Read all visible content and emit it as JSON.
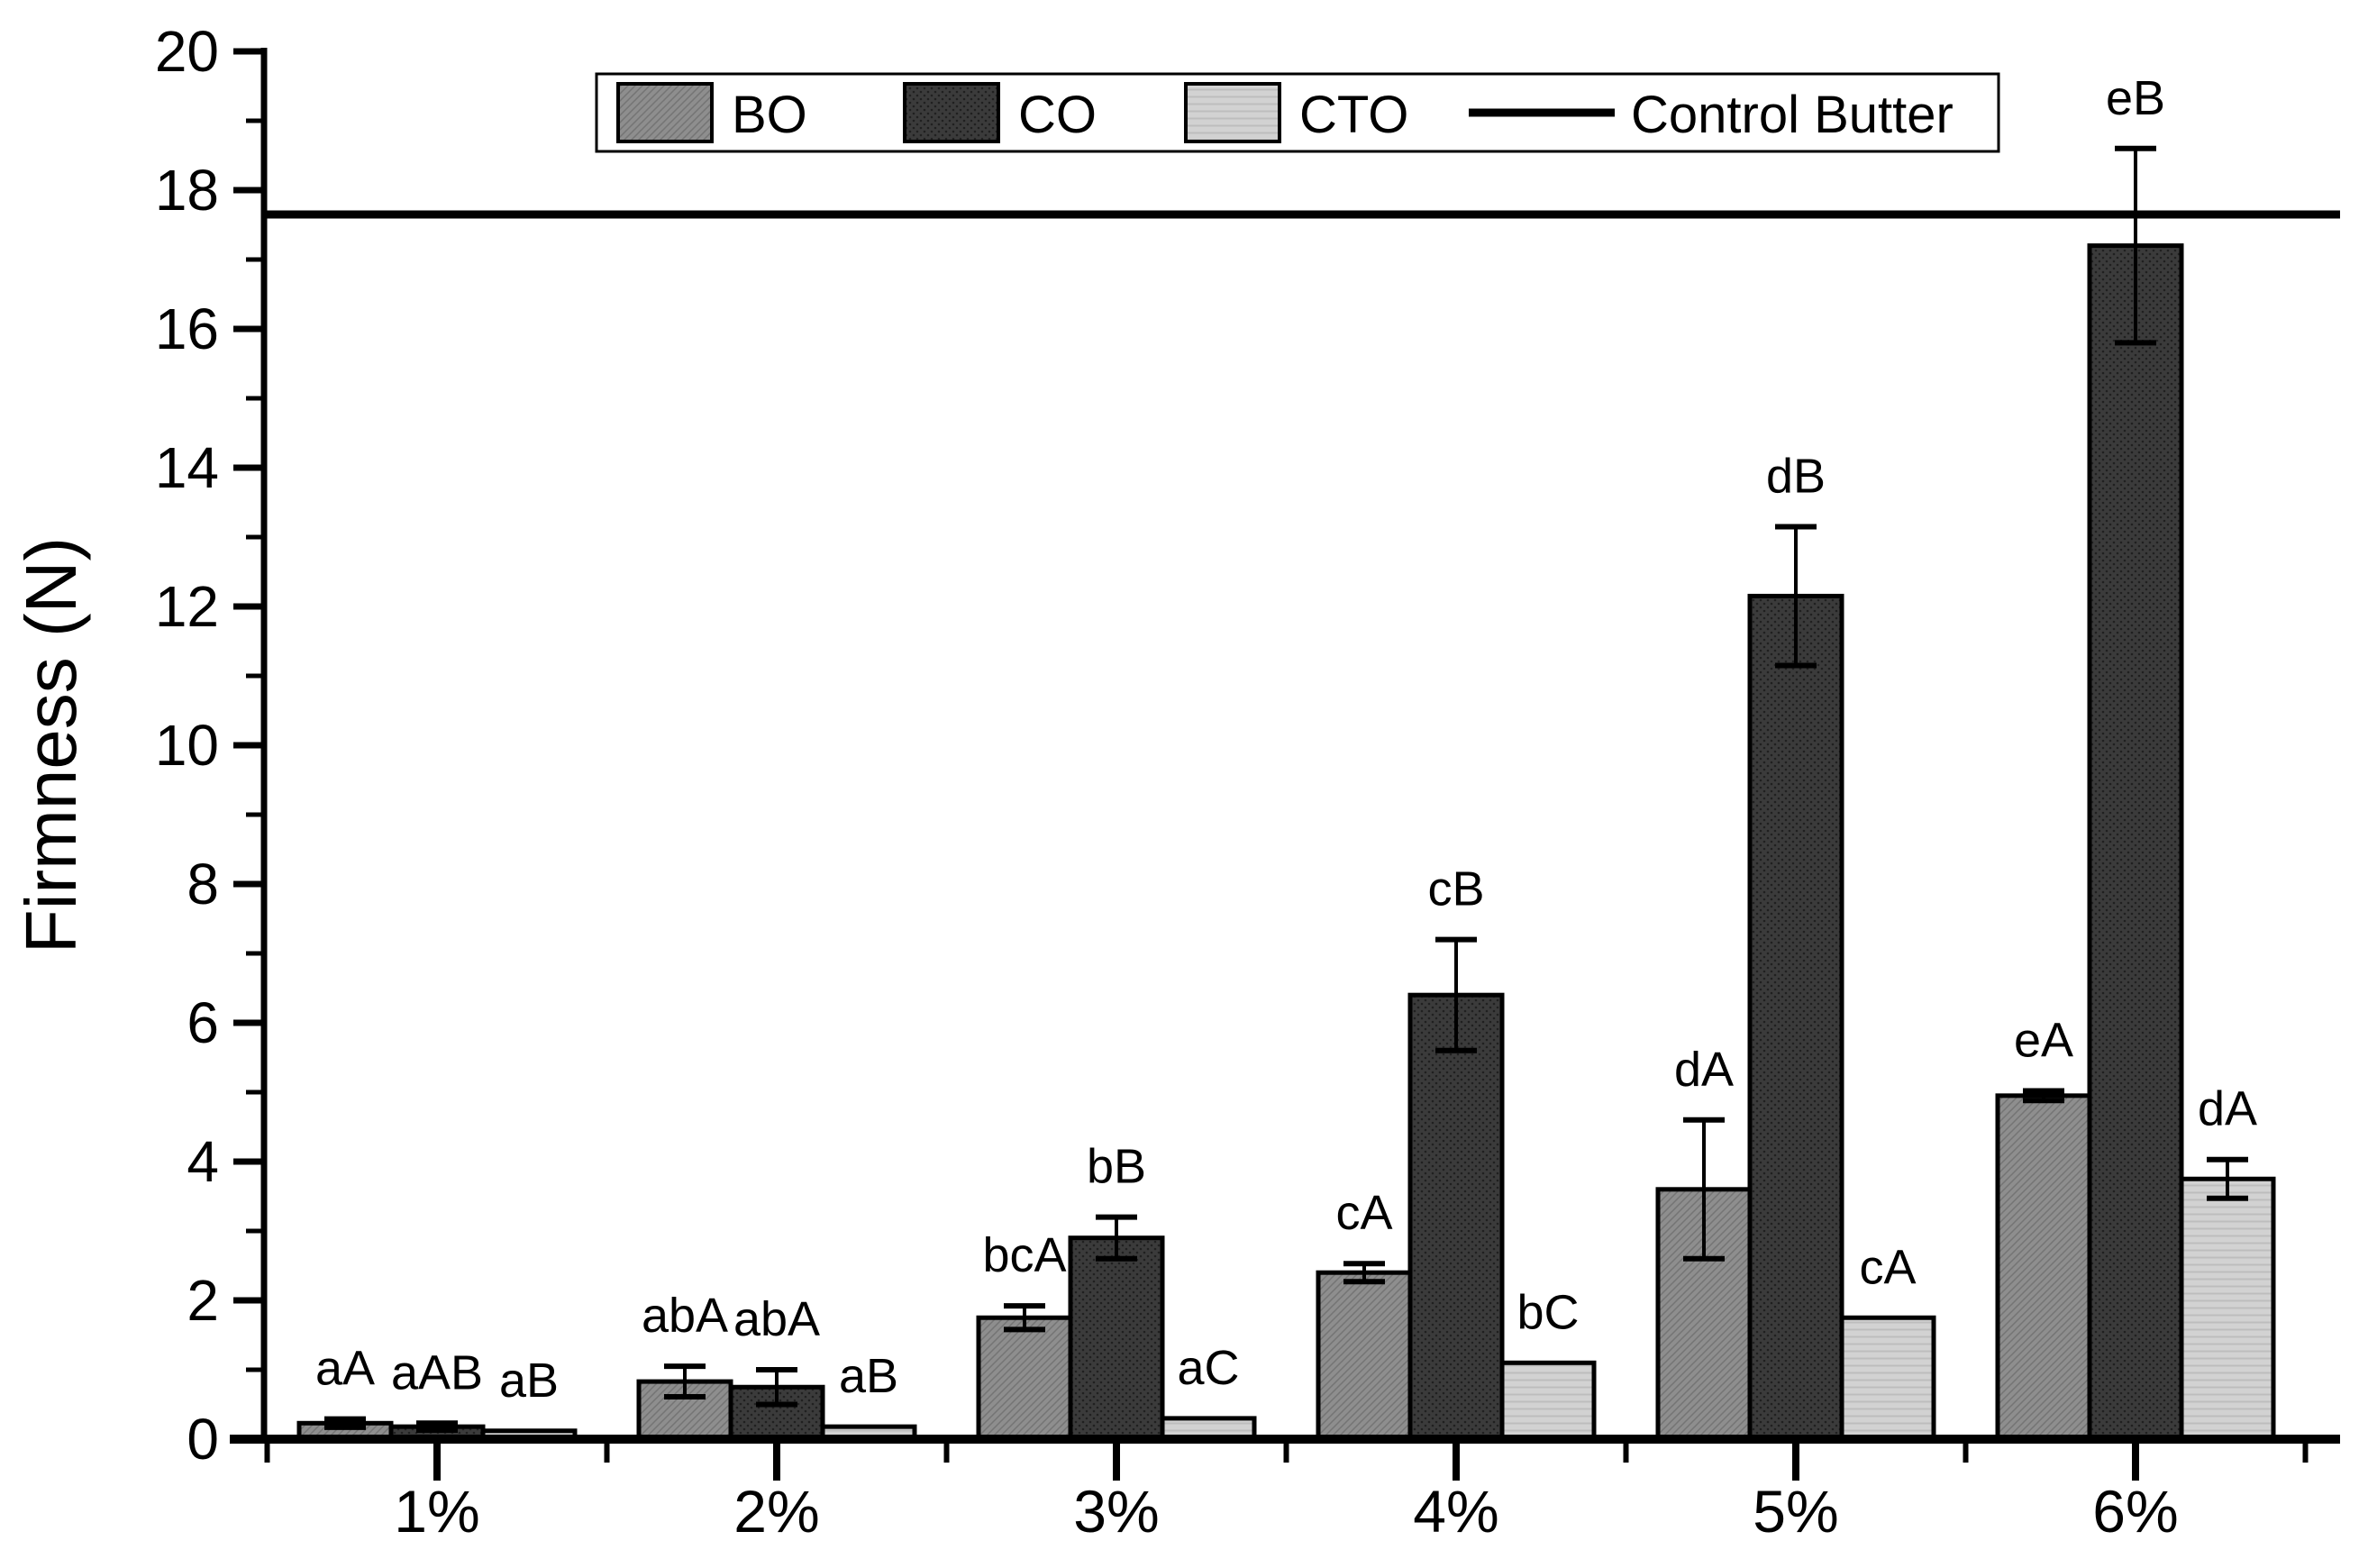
{
  "figure": {
    "background": "#ffffff",
    "axis_color": "#000000"
  },
  "chart_data": {
    "type": "bar",
    "title": "",
    "xlabel": "",
    "ylabel": "Firmness (N)",
    "ylim": [
      0,
      20
    ],
    "y_major_tick_step": 2,
    "y_minor_tick_step": 1,
    "grid": false,
    "y_ticks": [
      0,
      2,
      4,
      6,
      8,
      10,
      12,
      14,
      16,
      18,
      20
    ],
    "categories": [
      "1%",
      "2%",
      "3%",
      "4%",
      "5%",
      "6%"
    ],
    "series": [
      {
        "name": "BO",
        "color": "#8e8e8e",
        "values": [
          0.23,
          0.83,
          1.75,
          2.4,
          3.6,
          4.95
        ],
        "errors": [
          0.06,
          0.22,
          0.17,
          0.13,
          1.0,
          0.07
        ],
        "labels": [
          "aA",
          "abA",
          "bcA",
          "cA",
          "dA",
          "eA"
        ]
      },
      {
        "name": "CO",
        "color": "#3b3b3b",
        "values": [
          0.18,
          0.75,
          2.9,
          6.4,
          12.15,
          17.2
        ],
        "errors": [
          0.05,
          0.25,
          0.3,
          0.8,
          1.0,
          1.4
        ],
        "labels": [
          "aAB",
          "abA",
          "bB",
          "cB",
          "dB",
          "eB"
        ]
      },
      {
        "name": "CTO",
        "color": "#d2d2d2",
        "values": [
          0.12,
          0.18,
          0.3,
          1.1,
          1.75,
          3.75
        ],
        "errors": [
          0,
          0,
          0,
          0,
          0,
          0.28
        ],
        "labels": [
          "aB",
          "aB",
          "aC",
          "bC",
          "cA",
          "dA"
        ]
      }
    ],
    "reference_line": {
      "label": "Control Butter",
      "value": 17.65,
      "color": "#000000"
    },
    "legend": {
      "position": "top-center",
      "items": [
        "BO",
        "CO",
        "CTO",
        "Control Butter"
      ]
    }
  }
}
